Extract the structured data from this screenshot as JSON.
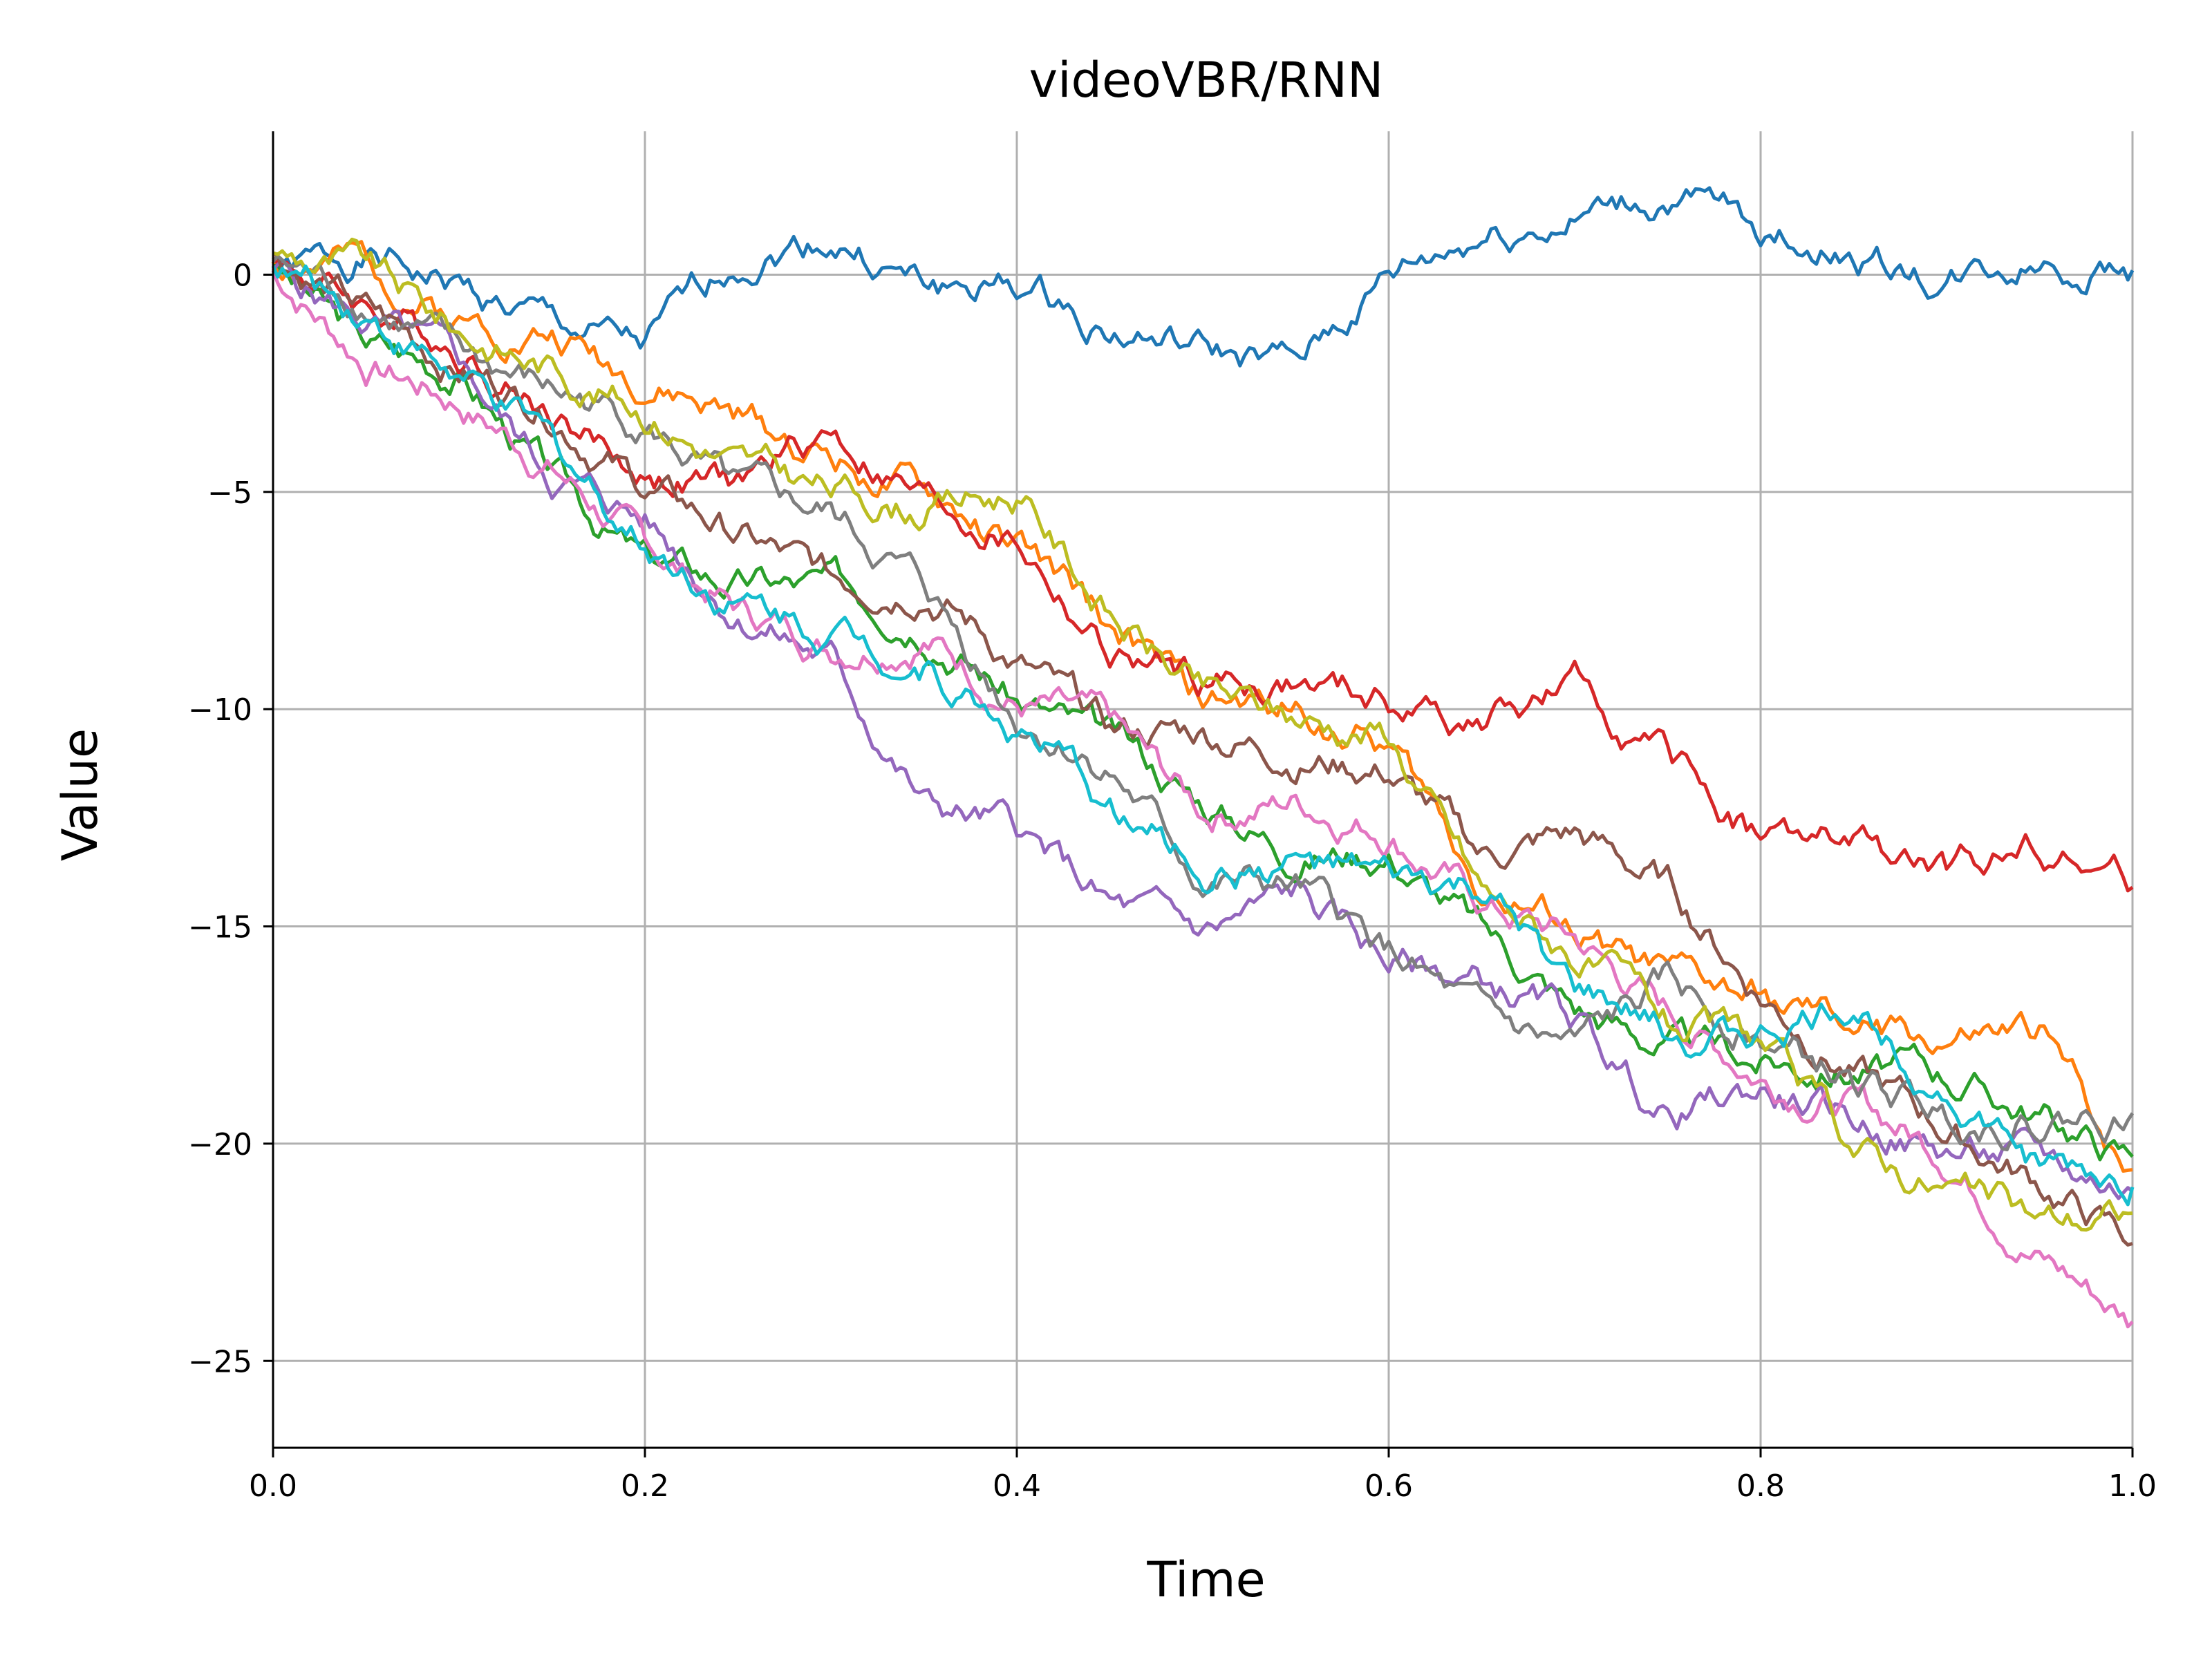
{
  "chart_data": {
    "type": "line",
    "title": "videoVBR/RNN",
    "xlabel": "Time",
    "ylabel": "Value",
    "xlim": [
      0.0,
      1.0
    ],
    "ylim": [
      -27,
      3.3
    ],
    "grid": true,
    "legend": "none",
    "x_ticks": [
      0.0,
      0.2,
      0.4,
      0.6,
      0.8,
      1.0
    ],
    "x_tick_labels": [
      "0.0",
      "0.2",
      "0.4",
      "0.6",
      "0.8",
      "1.0"
    ],
    "y_ticks": [
      0,
      -5,
      -10,
      -15,
      -20,
      -25
    ],
    "y_tick_labels": [
      "0",
      "−5",
      "−10",
      "−15",
      "−20",
      "−25"
    ],
    "x": [
      0.0,
      0.05,
      0.1,
      0.15,
      0.2,
      0.25,
      0.3,
      0.35,
      0.4,
      0.45,
      0.5,
      0.55,
      0.6,
      0.65,
      0.7,
      0.75,
      0.8,
      0.85,
      0.9,
      0.95,
      1.0
    ],
    "series": [
      {
        "color": "#1f77b4",
        "values": [
          0.0,
          0.4,
          -0.3,
          -1.2,
          -1.8,
          0.4,
          0.9,
          -0.3,
          -0.3,
          -1.2,
          -1.8,
          -2.2,
          -0.1,
          0.9,
          1.3,
          1.7,
          1.0,
          0.5,
          -0.2,
          0.4,
          0.1
        ]
      },
      {
        "color": "#ff7f0e",
        "values": [
          0.3,
          0.2,
          -1.0,
          -1.3,
          -2.4,
          -3.3,
          -4.1,
          -5.1,
          -6.3,
          -8.1,
          -9.9,
          -10.0,
          -10.8,
          -14.0,
          -15.2,
          -16.2,
          -16.7,
          -17.4,
          -17.6,
          -17.6,
          -20.6
        ]
      },
      {
        "color": "#2ca02c",
        "values": [
          0.2,
          -1.6,
          -2.2,
          -4.7,
          -6.6,
          -7.1,
          -7.2,
          -7.7,
          -9.7,
          -10.8,
          -12.1,
          -13.2,
          -13.2,
          -15.1,
          -16.8,
          -17.7,
          -18.1,
          -18.2,
          -18.4,
          -19.3,
          -20.3
        ]
      },
      {
        "color": "#d62728",
        "values": [
          0.4,
          -0.7,
          -1.6,
          -3.1,
          -4.6,
          -4.9,
          -3.6,
          -5.2,
          -6.1,
          -8.8,
          -9.4,
          -9.5,
          -9.9,
          -10.3,
          -9.6,
          -11.2,
          -12.9,
          -13.2,
          -13.9,
          -13.0,
          -14.1
        ]
      },
      {
        "color": "#9467bd",
        "values": [
          0.1,
          -1.1,
          -2.2,
          -4.6,
          -5.6,
          -7.7,
          -8.9,
          -12.2,
          -12.8,
          -14.6,
          -15.2,
          -14.3,
          -15.8,
          -16.3,
          -17.2,
          -19.4,
          -18.8,
          -19.5,
          -20.2,
          -20.4,
          -21.1
        ]
      },
      {
        "color": "#8c564b",
        "values": [
          0.5,
          -0.9,
          -2.1,
          -3.0,
          -4.9,
          -6.0,
          -7.1,
          -7.0,
          -8.9,
          -10.6,
          -10.5,
          -11.0,
          -11.4,
          -13.4,
          -12.9,
          -14.1,
          -16.5,
          -18.3,
          -19.7,
          -20.9,
          -22.3
        ]
      },
      {
        "color": "#e377c2",
        "values": [
          0.1,
          -2.0,
          -2.9,
          -4.4,
          -6.3,
          -7.7,
          -8.5,
          -8.2,
          -9.8,
          -10.5,
          -12.4,
          -12.1,
          -12.7,
          -14.5,
          -15.3,
          -17.0,
          -18.4,
          -19.1,
          -20.2,
          -22.5,
          -24.1
        ]
      },
      {
        "color": "#7f7f7f",
        "values": [
          0.3,
          -0.6,
          -1.9,
          -2.7,
          -3.4,
          -5.2,
          -5.6,
          -7.2,
          -10.1,
          -11.3,
          -14.0,
          -14.2,
          -15.6,
          -17.3,
          -17.9,
          -16.4,
          -17.5,
          -18.7,
          -19.3,
          -19.4,
          -19.3
        ]
      },
      {
        "color": "#bcbd22",
        "values": [
          0.5,
          0.1,
          -1.3,
          -2.1,
          -3.0,
          -4.4,
          -5.0,
          -5.3,
          -5.0,
          -7.8,
          -9.7,
          -10.2,
          -10.5,
          -14.2,
          -15.6,
          -17.3,
          -17.8,
          -20.1,
          -21.0,
          -21.8,
          -21.6
        ]
      },
      {
        "color": "#17becf",
        "values": [
          0.2,
          -0.8,
          -2.4,
          -4.0,
          -6.1,
          -7.5,
          -8.1,
          -8.9,
          -10.4,
          -12.3,
          -13.7,
          -13.5,
          -14.1,
          -14.3,
          -16.6,
          -17.5,
          -17.6,
          -16.8,
          -18.6,
          -20.6,
          -21.0
        ]
      }
    ]
  }
}
